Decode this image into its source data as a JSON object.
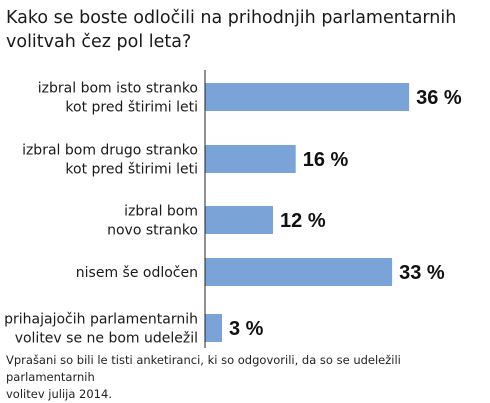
{
  "title_lines": [
    "Kako se boste odločili na prihodnjih parlamentarnih",
    "volitvah čez pol leta?"
  ],
  "chart_data": {
    "type": "bar",
    "orientation": "horizontal",
    "categories": [
      [
        "izbral bom isto stranko",
        "kot pred štirimi leti"
      ],
      [
        "izbral bom drugo stranko",
        "kot pred štirimi leti"
      ],
      [
        "izbral bom",
        "novo stranko"
      ],
      [
        "nisem še odločen"
      ],
      [
        "prihajajočih parlamentarnih",
        "volitev se ne bom udeležil"
      ]
    ],
    "values": [
      36,
      16,
      12,
      33,
      3
    ],
    "value_labels": [
      "36 %",
      "16 %",
      "12 %",
      "33 %",
      "3 %"
    ],
    "unit": "%",
    "bar_color": "#7aa3d8",
    "grid": false,
    "legend": "none"
  },
  "footnote_lines": [
    "Vprašani so bili le tisti anketiranci, ki so odgovorili, da so se udeležili parlamentarnih",
    "volitev julija 2014."
  ]
}
